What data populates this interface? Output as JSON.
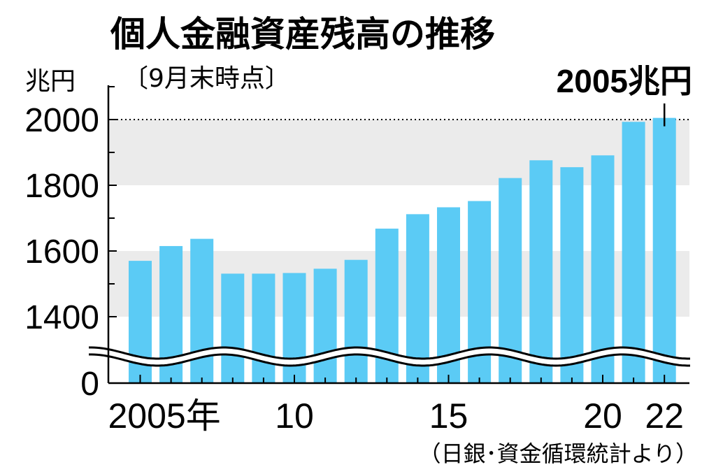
{
  "chart_data": {
    "type": "bar",
    "title": "個人金融資産残高の推移",
    "subtitle": "〔9月末時点〕",
    "ylabel": "兆円",
    "x": [
      2005,
      2006,
      2007,
      2008,
      2009,
      2010,
      2011,
      2012,
      2013,
      2014,
      2015,
      2016,
      2017,
      2018,
      2019,
      2020,
      2021,
      2022
    ],
    "values": [
      1570,
      1615,
      1637,
      1531,
      1531,
      1533,
      1546,
      1573,
      1668,
      1712,
      1733,
      1752,
      1822,
      1876,
      1855,
      1891,
      1993,
      2005
    ],
    "ylim": [
      0,
      2000
    ],
    "axis_break": [
      0,
      1400
    ],
    "yticks": [
      0,
      1400,
      1600,
      1800,
      2000
    ],
    "xtick_labels": [
      {
        "x": 2005,
        "label": "2005年"
      },
      {
        "x": 2010,
        "label": "10"
      },
      {
        "x": 2015,
        "label": "15"
      },
      {
        "x": 2020,
        "label": "20"
      },
      {
        "x": 2022,
        "label": "22"
      }
    ],
    "annotation": {
      "x": 2022,
      "label": "2005兆円"
    },
    "source": "（日銀･資金循環統計より）",
    "colors": {
      "bar": "#5bcbf5",
      "band": "#ebebeb"
    }
  }
}
